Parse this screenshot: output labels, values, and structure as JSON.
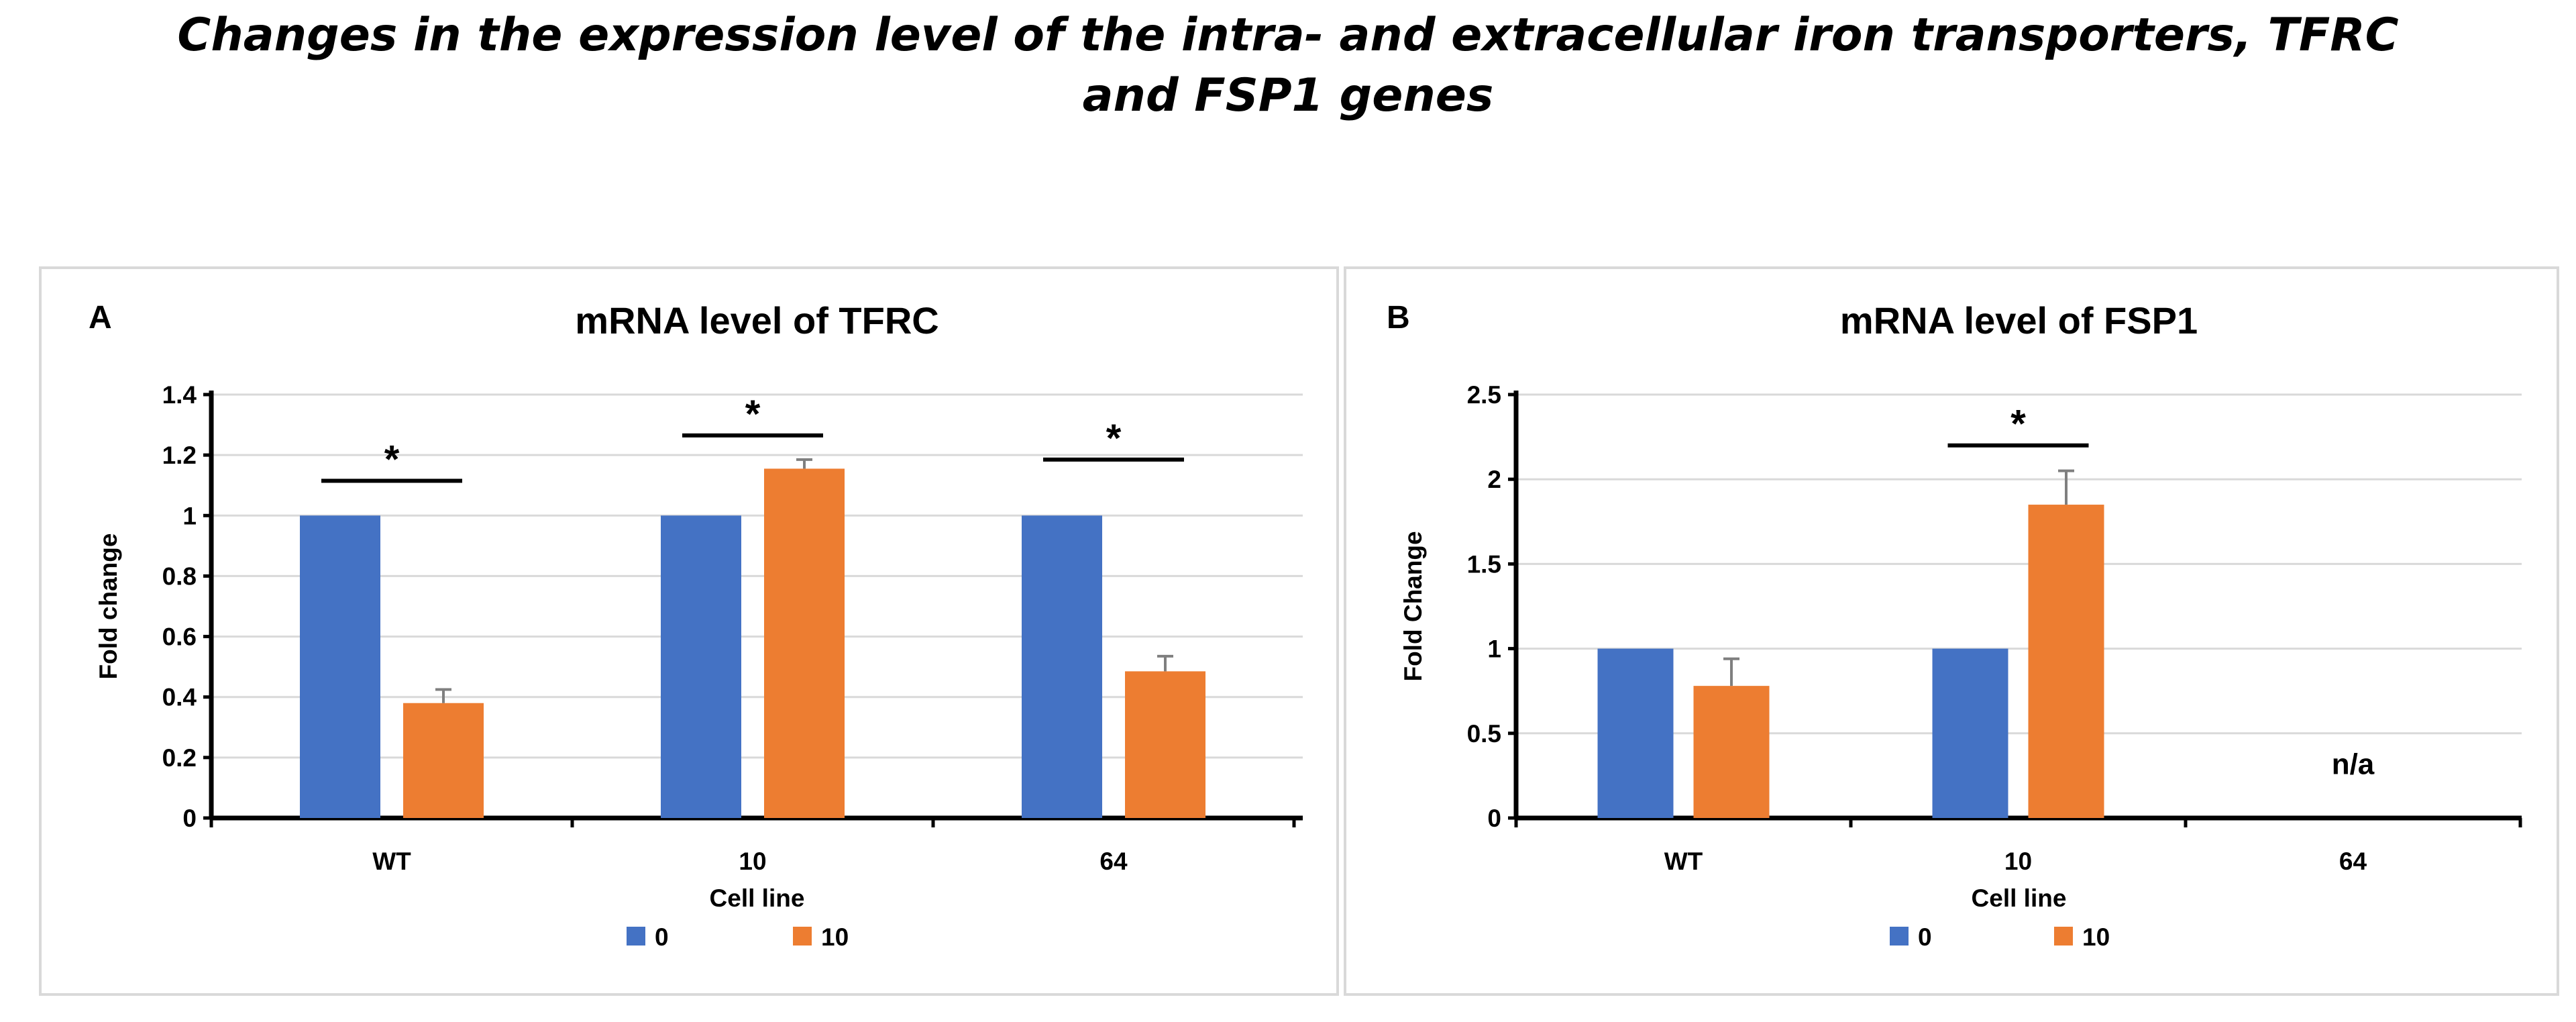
{
  "page_title": {
    "line1": "Changes in the expression level of the intra- and extracellular iron transporters, TFRC",
    "line2": "and FSP1 genes"
  },
  "colors": {
    "series_0": "#4472c4",
    "series_10": "#ed7d31",
    "grid": "#d9d9d9",
    "axis": "#000000",
    "error": "#7f7f7f"
  },
  "chart_data": [
    {
      "type": "bar",
      "panel_label": "A",
      "title": "mRNA level of TFRC",
      "xlabel": "Cell line",
      "ylabel": "Fold change",
      "categories": [
        "WT",
        "10",
        "64"
      ],
      "ylim": [
        0,
        1.4
      ],
      "yticks": [
        0,
        0.2,
        0.4,
        0.6,
        0.8,
        1,
        1.2,
        1.4
      ],
      "ytick_labels": [
        "0",
        "0.2",
        "0.4",
        "0.6",
        "0.8",
        "1",
        "1.2",
        "1.4"
      ],
      "series": [
        {
          "name": "0",
          "values": [
            1,
            1,
            1
          ],
          "errors": [
            0,
            0,
            0
          ]
        },
        {
          "name": "10",
          "values": [
            0.38,
            1.155,
            0.485
          ],
          "errors": [
            0.045,
            0.03,
            0.05
          ]
        }
      ],
      "significance": [
        {
          "category": "WT",
          "label": "*",
          "y": 1.115
        },
        {
          "category": "10",
          "label": "*",
          "y": 1.265
        },
        {
          "category": "64",
          "label": "*",
          "y": 1.185
        }
      ],
      "annotations": [],
      "legend": [
        "0",
        "10"
      ],
      "legend_position": "bottom",
      "grid": true
    },
    {
      "type": "bar",
      "panel_label": "B",
      "title": "mRNA level of FSP1",
      "xlabel": "Cell line",
      "ylabel": "Fold Change",
      "categories": [
        "WT",
        "10",
        "64"
      ],
      "ylim": [
        0,
        2.5
      ],
      "yticks": [
        0,
        0.5,
        1,
        1.5,
        2,
        2.5
      ],
      "ytick_labels": [
        "0",
        "0.5",
        "1",
        "1.5",
        "2",
        "2.5"
      ],
      "series": [
        {
          "name": "0",
          "values": [
            1,
            1,
            null
          ],
          "errors": [
            0,
            0,
            null
          ]
        },
        {
          "name": "10",
          "values": [
            0.78,
            1.85,
            null
          ],
          "errors": [
            0.16,
            0.2,
            null
          ]
        }
      ],
      "significance": [
        {
          "category": "10",
          "label": "*",
          "y": 2.2
        }
      ],
      "annotations": [
        {
          "category": "64",
          "text": "n/a",
          "y": 0.26
        }
      ],
      "legend": [
        "0",
        "10"
      ],
      "legend_position": "bottom",
      "grid": true
    }
  ]
}
